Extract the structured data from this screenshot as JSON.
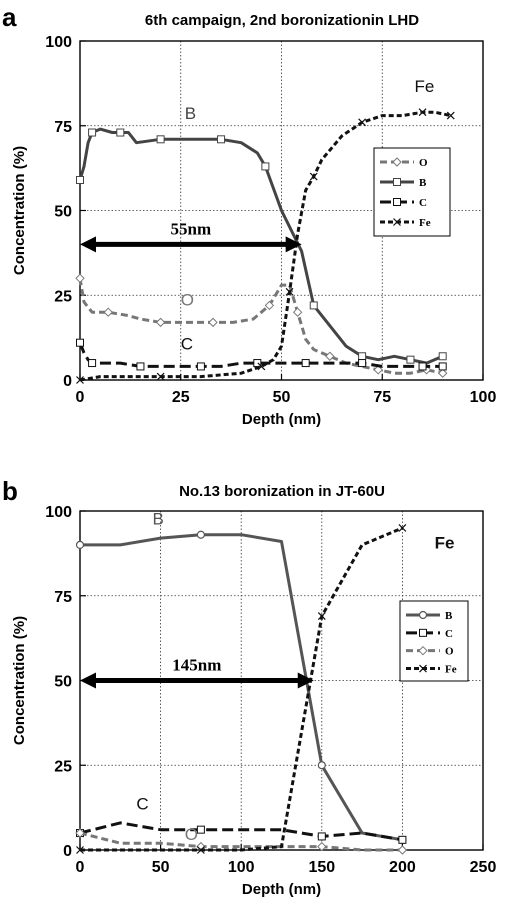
{
  "chart_data": [
    {
      "panel_letter": "a",
      "type": "line",
      "title": "6th campaign, 2nd boronizationin LHD",
      "xlabel": "Depth (nm)",
      "ylabel": "Concentration (%)",
      "xlim": [
        0,
        100
      ],
      "ylim": [
        0,
        100
      ],
      "xticks": [
        "0",
        "25",
        "50",
        "75",
        "100"
      ],
      "yticks": [
        "0",
        "25",
        "50",
        "75",
        "100"
      ],
      "grid": "dotted",
      "legend_position": "right",
      "legend": [
        "O",
        "B",
        "C",
        "Fe"
      ],
      "annotation": {
        "text": "55nm",
        "x_start": 0,
        "x_end": 55,
        "y": 40
      },
      "series": [
        {
          "name": "O",
          "label": "O",
          "label_at": [
            25,
            22
          ],
          "color": "#777777",
          "marker": "diamond",
          "dash": "dash",
          "x": [
            0,
            1,
            3,
            7,
            12,
            15,
            20,
            25,
            28,
            33,
            38,
            43,
            47,
            50,
            52,
            54,
            56,
            58,
            62,
            66,
            70,
            74,
            78,
            82,
            86,
            90
          ],
          "y": [
            30,
            23,
            20,
            20,
            19,
            18,
            17,
            17,
            17,
            17,
            17,
            18,
            22,
            28,
            28,
            20,
            12,
            9,
            7,
            5,
            4,
            3,
            2,
            2,
            3,
            2
          ]
        },
        {
          "name": "B",
          "label": "B",
          "label_at": [
            26,
            77
          ],
          "color": "#444444",
          "marker": "square",
          "dash": "solid",
          "x": [
            0,
            1,
            2,
            3,
            5,
            8,
            10,
            12,
            14,
            20,
            25,
            28,
            35,
            40,
            44,
            46,
            50,
            55,
            58,
            62,
            66,
            70,
            74,
            78,
            82,
            86,
            90
          ],
          "y": [
            59,
            63,
            70,
            73,
            74,
            73,
            73,
            73,
            70,
            71,
            71,
            71,
            71,
            70,
            67,
            63,
            50,
            38,
            22,
            16,
            10,
            7,
            6,
            7,
            6,
            5,
            7
          ]
        },
        {
          "name": "C",
          "label": "C",
          "label_at": [
            25,
            9
          ],
          "color": "#111111",
          "marker": "square-open",
          "dash": "longdash",
          "x": [
            0,
            1,
            2,
            3,
            5,
            10,
            15,
            20,
            25,
            30,
            35,
            40,
            44,
            48,
            52,
            56,
            60,
            65,
            70,
            75,
            80,
            85,
            90
          ],
          "y": [
            11,
            8,
            6,
            5,
            5,
            5,
            4,
            4,
            4,
            4,
            4,
            5,
            5,
            5,
            5,
            5,
            5,
            5,
            5,
            4,
            4,
            4,
            4
          ]
        },
        {
          "name": "Fe",
          "label": "Fe",
          "label_at": [
            83,
            85
          ],
          "color": "#111111",
          "marker": "x",
          "dash": "shortdash",
          "x": [
            0,
            5,
            10,
            20,
            30,
            40,
            45,
            48,
            50,
            52,
            54,
            56,
            58,
            60,
            65,
            70,
            75,
            80,
            85,
            88,
            92
          ],
          "y": [
            0,
            1,
            1,
            1,
            1,
            2,
            4,
            6,
            10,
            26,
            43,
            56,
            60,
            65,
            72,
            76,
            78,
            78,
            79,
            79,
            78
          ]
        }
      ]
    },
    {
      "panel_letter": "b",
      "type": "line",
      "title": "No.13 boronization in JT-60U",
      "xlabel": "Depth (nm)",
      "ylabel": "Concentration (%)",
      "xlim": [
        0,
        250
      ],
      "ylim": [
        0,
        100
      ],
      "xticks": [
        "0",
        "50",
        "100",
        "150",
        "200",
        "250"
      ],
      "yticks": [
        "0",
        "25",
        "50",
        "75",
        "100"
      ],
      "grid": "dotted",
      "legend_position": "right",
      "legend": [
        "B",
        "C",
        "O",
        "Fe"
      ],
      "annotation": {
        "text": "145nm",
        "x_start": 0,
        "x_end": 145,
        "y": 50
      },
      "series": [
        {
          "name": "B",
          "label": "B",
          "label_at": [
            45,
            96
          ],
          "color": "#555555",
          "marker": "circle",
          "dash": "solid",
          "x": [
            0,
            25,
            50,
            75,
            100,
            125,
            150,
            175,
            200
          ],
          "y": [
            90,
            90,
            92,
            93,
            93,
            91,
            25,
            5,
            3
          ]
        },
        {
          "name": "C",
          "label": "C",
          "label_at": [
            35,
            12
          ],
          "color": "#111111",
          "marker": "square",
          "dash": "longdash",
          "x": [
            0,
            25,
            50,
            75,
            100,
            125,
            150,
            175,
            200
          ],
          "y": [
            5,
            8,
            6,
            6,
            6,
            6,
            4,
            5,
            3
          ]
        },
        {
          "name": "O",
          "label": "O",
          "label_at": [
            65,
            3
          ],
          "color": "#777777",
          "marker": "diamond",
          "dash": "dash",
          "x": [
            0,
            25,
            50,
            75,
            100,
            125,
            150,
            175,
            200
          ],
          "y": [
            5,
            2,
            2,
            1,
            1,
            1,
            1,
            0,
            0
          ]
        },
        {
          "name": "Fe",
          "label": "Fe",
          "label_at": [
            220,
            89
          ],
          "color": "#111111",
          "marker": "x",
          "dash": "shortdash",
          "x": [
            0,
            25,
            50,
            75,
            100,
            125,
            150,
            175,
            200
          ],
          "y": [
            0,
            0,
            0,
            0,
            0,
            1,
            69,
            90,
            95
          ]
        }
      ]
    }
  ]
}
